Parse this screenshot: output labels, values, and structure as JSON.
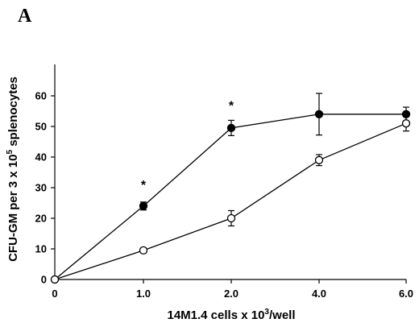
{
  "panel_label": "A",
  "chart_data": {
    "type": "line",
    "x_categories": [
      "0",
      "1.0",
      "2.0",
      "4.0",
      "6.0"
    ],
    "xlabel": {
      "pre": "14M1.4 cells x 10",
      "sup": "3",
      "post": "/well"
    },
    "ylabel": {
      "pre": "CFU-GM per 3 x 10",
      "sup": "5",
      "post": " splenocytes"
    },
    "ylim": [
      0,
      65
    ],
    "yticks": [
      "0",
      "10",
      "20",
      "30",
      "40",
      "50",
      "60"
    ],
    "grid": false,
    "series": [
      {
        "marker": "filled-circle",
        "values": [
          0,
          24,
          49.5,
          54,
          54
        ],
        "errors": [
          0,
          1.3,
          2.5,
          6.8,
          2.3
        ]
      },
      {
        "marker": "open-circle",
        "values": [
          0,
          9.5,
          20,
          39,
          51
        ],
        "errors": [
          0,
          0.8,
          2.5,
          1.8,
          2.5
        ]
      }
    ],
    "annotations": [
      {
        "text": "*",
        "category_index": 1,
        "y": 31
      },
      {
        "text": "*",
        "category_index": 2,
        "y": 57
      }
    ]
  }
}
